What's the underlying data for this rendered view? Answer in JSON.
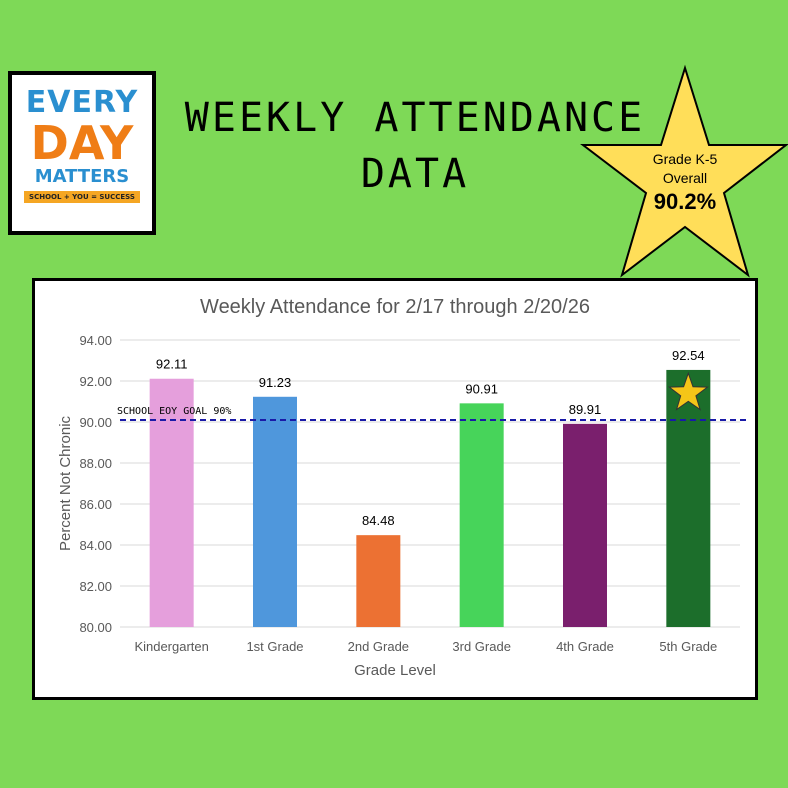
{
  "header": {
    "title_line1": "WEEKLY ATTENDANCE",
    "title_line2": "DATA"
  },
  "logo": {
    "line1": "EVERY",
    "line2": "DAY",
    "line3": "MATTERS",
    "tagline": "SCHOOL + YOU = SUCCESS"
  },
  "badge": {
    "line1": "Grade K-5",
    "line2": "Overall",
    "value": "90.2%",
    "color": "#ffde59"
  },
  "chart_data": {
    "type": "bar",
    "title": "Weekly Attendance for 2/17 through 2/20/26",
    "xlabel": "Grade Level",
    "ylabel": "Percent Not Chronic",
    "ylim": [
      80,
      94
    ],
    "yticks": [
      "80.00",
      "82.00",
      "84.00",
      "86.00",
      "88.00",
      "90.00",
      "92.00",
      "94.00"
    ],
    "categories": [
      "Kindergarten",
      "1st Grade",
      "2nd Grade",
      "3rd Grade",
      "4th Grade",
      "5th Grade"
    ],
    "values": [
      92.11,
      91.23,
      84.48,
      90.91,
      89.91,
      92.54
    ],
    "labels": [
      "92.11",
      "91.23",
      "84.48",
      "90.91",
      "89.91",
      "92.54"
    ],
    "colors": [
      "#e59fdc",
      "#4f97dc",
      "#ec7133",
      "#47d45a",
      "#7a1f6d",
      "#1c6e2b"
    ],
    "goal": {
      "value": 90.1,
      "label": "SCHOOL EOY GOAL 90%",
      "color": "#1a1aa8"
    },
    "grid": true
  }
}
